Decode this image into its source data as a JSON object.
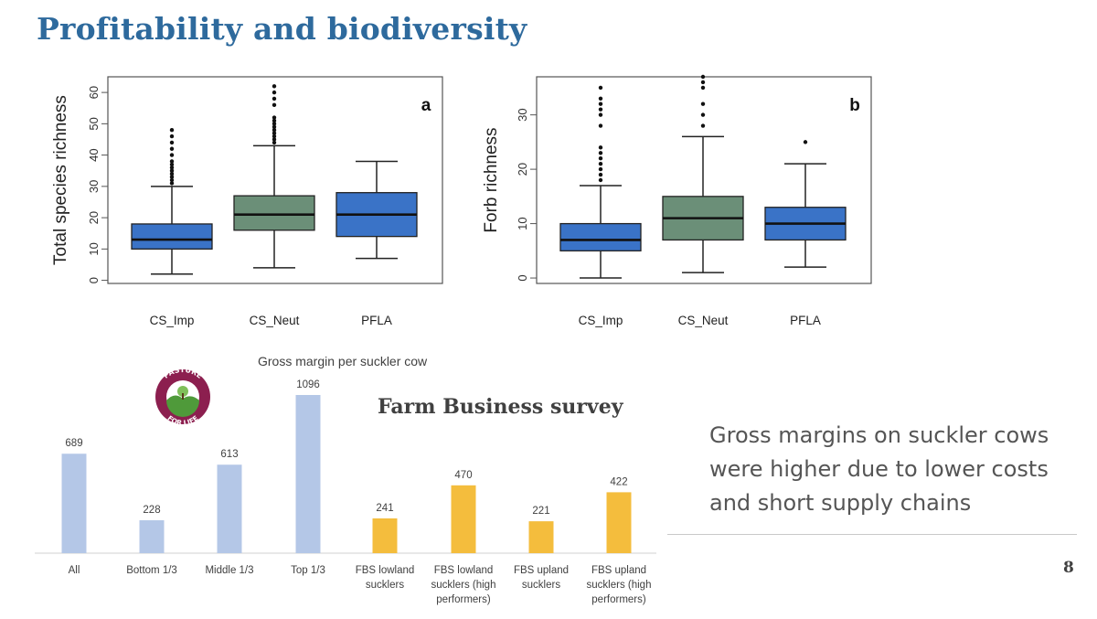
{
  "slide": {
    "title": "Profitability and biodiversity",
    "fbs_title": "Farm Business survey",
    "summary": "Gross margins on suckler cows were higher due to lower costs and short supply chains",
    "page_number": "8",
    "logo_text": "PASTURE FOR LIFE"
  },
  "colors": {
    "title": "#2e6a9d",
    "box_blue": "#3a73c7",
    "box_green": "#6b8f78",
    "bar_blue": "#b4c7e7",
    "bar_yellow": "#f4bd3d"
  },
  "chart_data": [
    {
      "type": "boxplot",
      "panel_label": "a",
      "ylabel": "Total species richness",
      "categories": [
        "CS_Imp",
        "CS_Neut",
        "PFLA"
      ],
      "yticks": [
        0,
        10,
        20,
        30,
        40,
        50,
        60
      ],
      "ylim": [
        -1,
        65
      ],
      "boxes": [
        {
          "category": "CS_Imp",
          "min": 2,
          "q1": 10,
          "median": 13,
          "q3": 18,
          "max": 30,
          "outliers": [
            31,
            32,
            33,
            34,
            35,
            36,
            37,
            38,
            40,
            42,
            44,
            46,
            48
          ],
          "color": "#3a73c7"
        },
        {
          "category": "CS_Neut",
          "min": 4,
          "q1": 16,
          "median": 21,
          "q3": 27,
          "max": 43,
          "outliers": [
            44,
            45,
            46,
            47,
            48,
            49,
            50,
            51,
            52,
            56,
            58,
            60,
            62
          ],
          "color": "#6b8f78"
        },
        {
          "category": "PFLA",
          "min": 7,
          "q1": 14,
          "median": 21,
          "q3": 28,
          "max": 38,
          "outliers": [],
          "color": "#3a73c7"
        }
      ]
    },
    {
      "type": "boxplot",
      "panel_label": "b",
      "ylabel": "Forb richness",
      "categories": [
        "CS_Imp",
        "CS_Neut",
        "PFLA"
      ],
      "yticks": [
        0,
        10,
        20,
        30
      ],
      "ylim": [
        -1,
        37
      ],
      "boxes": [
        {
          "category": "CS_Imp",
          "min": 0,
          "q1": 5,
          "median": 7,
          "q3": 10,
          "max": 17,
          "outliers": [
            18,
            19,
            20,
            21,
            22,
            23,
            24,
            28,
            30,
            31,
            32,
            33,
            35
          ],
          "color": "#3a73c7"
        },
        {
          "category": "CS_Neut",
          "min": 1,
          "q1": 7,
          "median": 11,
          "q3": 15,
          "max": 26,
          "outliers": [
            28,
            30,
            32,
            35,
            36,
            37
          ],
          "color": "#6b8f78"
        },
        {
          "category": "PFLA",
          "min": 2,
          "q1": 7,
          "median": 10,
          "q3": 13,
          "max": 21,
          "outliers": [
            25
          ],
          "color": "#3a73c7"
        }
      ]
    },
    {
      "type": "bar",
      "title": "Gross margin per suckler cow",
      "categories": [
        [
          "All"
        ],
        [
          "Bottom 1/3"
        ],
        [
          "Middle 1/3"
        ],
        [
          "Top 1/3"
        ],
        [
          "FBS lowland",
          "sucklers"
        ],
        [
          "FBS lowland",
          "sucklers (high",
          "performers)"
        ],
        [
          "FBS upland",
          "sucklers"
        ],
        [
          "FBS upland",
          "sucklers (high",
          "performers)"
        ]
      ],
      "values": [
        689,
        228,
        613,
        1096,
        241,
        470,
        221,
        422
      ],
      "colors": [
        "#b4c7e7",
        "#b4c7e7",
        "#b4c7e7",
        "#b4c7e7",
        "#f4bd3d",
        "#f4bd3d",
        "#f4bd3d",
        "#f4bd3d"
      ],
      "ylim": [
        0,
        1200
      ]
    }
  ]
}
